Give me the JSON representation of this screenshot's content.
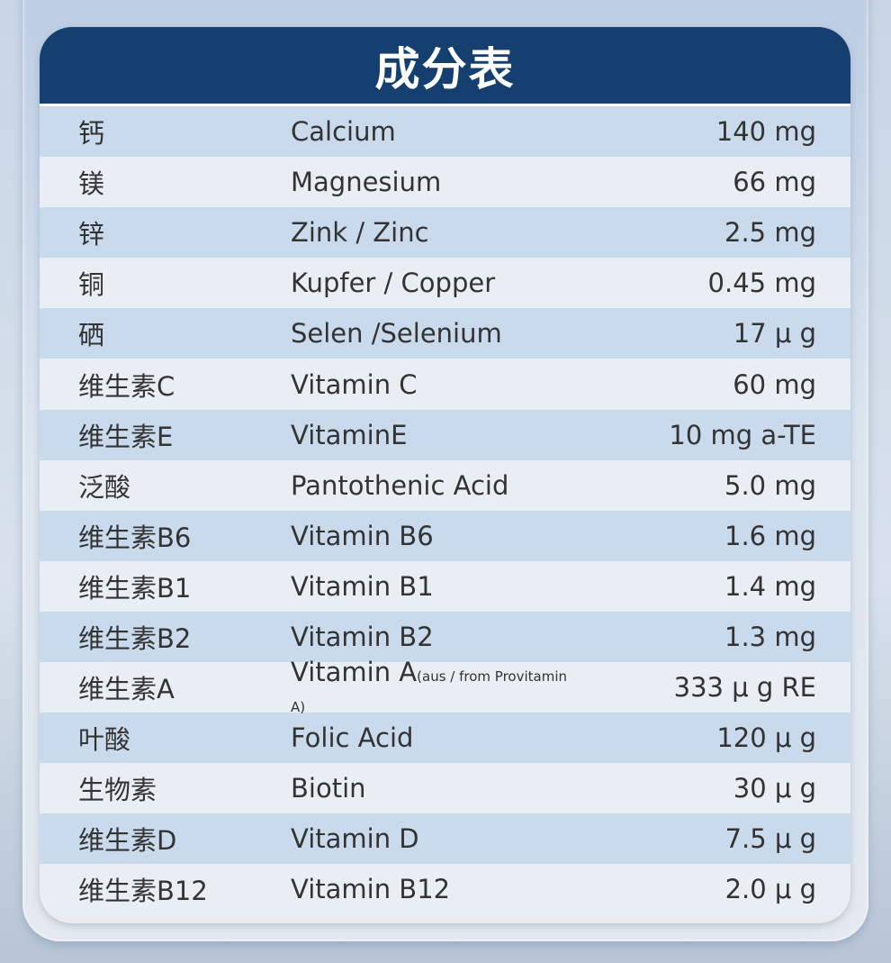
{
  "title": "成分表",
  "colors": {
    "header": "#143f6e",
    "row_dark": "#c9daed",
    "row_light": "#e9eef5"
  },
  "rows": [
    {
      "cn": "钙",
      "en": "Calcium",
      "note": "",
      "amount": "140 mg"
    },
    {
      "cn": "镁",
      "en": "Magnesium",
      "note": "",
      "amount": "66 mg"
    },
    {
      "cn": "锌",
      "en": "Zink / Zinc",
      "note": "",
      "amount": "2.5 mg"
    },
    {
      "cn": "铜",
      "en": "Kupfer / Copper",
      "note": "",
      "amount": "0.45 mg"
    },
    {
      "cn": "硒",
      "en": "Selen /Selenium",
      "note": "",
      "amount": "17 μ g"
    },
    {
      "cn": "维生素C",
      "en": "Vitamin C",
      "note": "",
      "amount": "60 mg"
    },
    {
      "cn": "维生素E",
      "en": "VitaminE",
      "note": "",
      "amount": "10 mg a-TE"
    },
    {
      "cn": "泛酸",
      "en": "Pantothenic Acid",
      "note": "",
      "amount": "5.0 mg"
    },
    {
      "cn": "维生素B6",
      "en": "Vitamin B6",
      "note": "",
      "amount": "1.6 mg"
    },
    {
      "cn": "维生素B1",
      "en": "Vitamin B1",
      "note": "",
      "amount": "1.4 mg"
    },
    {
      "cn": "维生素B2",
      "en": "Vitamin B2",
      "note": "",
      "amount": "1.3 mg"
    },
    {
      "cn": "维生素A",
      "en": "Vitamin A",
      "note": "(aus / from Provitamin A)",
      "amount": "333  μ g RE"
    },
    {
      "cn": "叶酸",
      "en": "Folic Acid",
      "note": "",
      "amount": "120  μ g"
    },
    {
      "cn": "生物素",
      "en": "Biotin",
      "note": "",
      "amount": "30 μ g"
    },
    {
      "cn": "维生素D",
      "en": "Vitamin D",
      "note": "",
      "amount": "7.5 μ g"
    },
    {
      "cn": "维生素B12",
      "en": "Vitamin B12",
      "note": "",
      "amount": "2.0 μ g"
    }
  ]
}
